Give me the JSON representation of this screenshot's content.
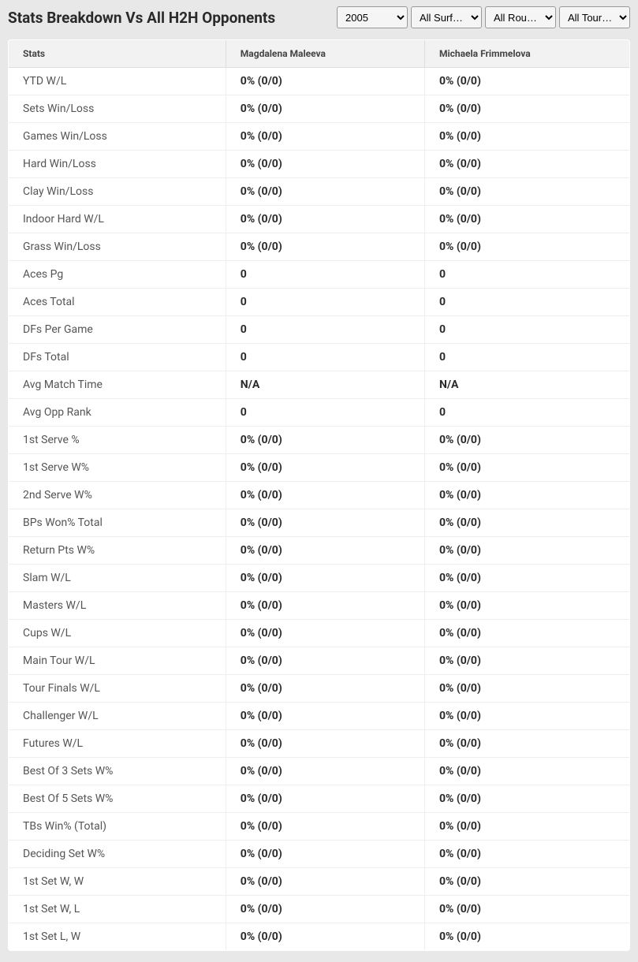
{
  "header": {
    "title": "Stats Breakdown Vs All H2H Opponents"
  },
  "filters": {
    "year": {
      "selected": "2005",
      "options": [
        "2005"
      ]
    },
    "surface": {
      "selected": "All Surf…",
      "options": [
        "All Surf…"
      ]
    },
    "round": {
      "selected": "All Rou…",
      "options": [
        "All Rou…"
      ]
    },
    "tour": {
      "selected": "All Tour…",
      "options": [
        "All Tour…"
      ]
    }
  },
  "table": {
    "columns": [
      "Stats",
      "Magdalena Maleeva",
      "Michaela Frimmelova"
    ],
    "rows": [
      {
        "stat": "YTD W/L",
        "p1": "0% (0/0)",
        "p2": "0% (0/0)"
      },
      {
        "stat": "Sets Win/Loss",
        "p1": "0% (0/0)",
        "p2": "0% (0/0)"
      },
      {
        "stat": "Games Win/Loss",
        "p1": "0% (0/0)",
        "p2": "0% (0/0)"
      },
      {
        "stat": "Hard Win/Loss",
        "p1": "0% (0/0)",
        "p2": "0% (0/0)"
      },
      {
        "stat": "Clay Win/Loss",
        "p1": "0% (0/0)",
        "p2": "0% (0/0)"
      },
      {
        "stat": "Indoor Hard W/L",
        "p1": "0% (0/0)",
        "p2": "0% (0/0)"
      },
      {
        "stat": "Grass Win/Loss",
        "p1": "0% (0/0)",
        "p2": "0% (0/0)"
      },
      {
        "stat": "Aces Pg",
        "p1": "0",
        "p2": "0"
      },
      {
        "stat": "Aces Total",
        "p1": "0",
        "p2": "0"
      },
      {
        "stat": "DFs Per Game",
        "p1": "0",
        "p2": "0"
      },
      {
        "stat": "DFs Total",
        "p1": "0",
        "p2": "0"
      },
      {
        "stat": "Avg Match Time",
        "p1": "N/A",
        "p2": "N/A"
      },
      {
        "stat": "Avg Opp Rank",
        "p1": "0",
        "p2": "0"
      },
      {
        "stat": "1st Serve %",
        "p1": "0% (0/0)",
        "p2": "0% (0/0)"
      },
      {
        "stat": "1st Serve W%",
        "p1": "0% (0/0)",
        "p2": "0% (0/0)"
      },
      {
        "stat": "2nd Serve W%",
        "p1": "0% (0/0)",
        "p2": "0% (0/0)"
      },
      {
        "stat": "BPs Won% Total",
        "p1": "0% (0/0)",
        "p2": "0% (0/0)"
      },
      {
        "stat": "Return Pts W%",
        "p1": "0% (0/0)",
        "p2": "0% (0/0)"
      },
      {
        "stat": "Slam W/L",
        "p1": "0% (0/0)",
        "p2": "0% (0/0)"
      },
      {
        "stat": "Masters W/L",
        "p1": "0% (0/0)",
        "p2": "0% (0/0)"
      },
      {
        "stat": "Cups W/L",
        "p1": "0% (0/0)",
        "p2": "0% (0/0)"
      },
      {
        "stat": "Main Tour W/L",
        "p1": "0% (0/0)",
        "p2": "0% (0/0)"
      },
      {
        "stat": "Tour Finals W/L",
        "p1": "0% (0/0)",
        "p2": "0% (0/0)"
      },
      {
        "stat": "Challenger W/L",
        "p1": "0% (0/0)",
        "p2": "0% (0/0)"
      },
      {
        "stat": "Futures W/L",
        "p1": "0% (0/0)",
        "p2": "0% (0/0)"
      },
      {
        "stat": "Best Of 3 Sets W%",
        "p1": "0% (0/0)",
        "p2": "0% (0/0)"
      },
      {
        "stat": "Best Of 5 Sets W%",
        "p1": "0% (0/0)",
        "p2": "0% (0/0)"
      },
      {
        "stat": "TBs Win% (Total)",
        "p1": "0% (0/0)",
        "p2": "0% (0/0)"
      },
      {
        "stat": "Deciding Set W%",
        "p1": "0% (0/0)",
        "p2": "0% (0/0)"
      },
      {
        "stat": "1st Set W, W",
        "p1": "0% (0/0)",
        "p2": "0% (0/0)"
      },
      {
        "stat": "1st Set W, L",
        "p1": "0% (0/0)",
        "p2": "0% (0/0)"
      },
      {
        "stat": "1st Set L, W",
        "p1": "0% (0/0)",
        "p2": "0% (0/0)"
      }
    ]
  }
}
